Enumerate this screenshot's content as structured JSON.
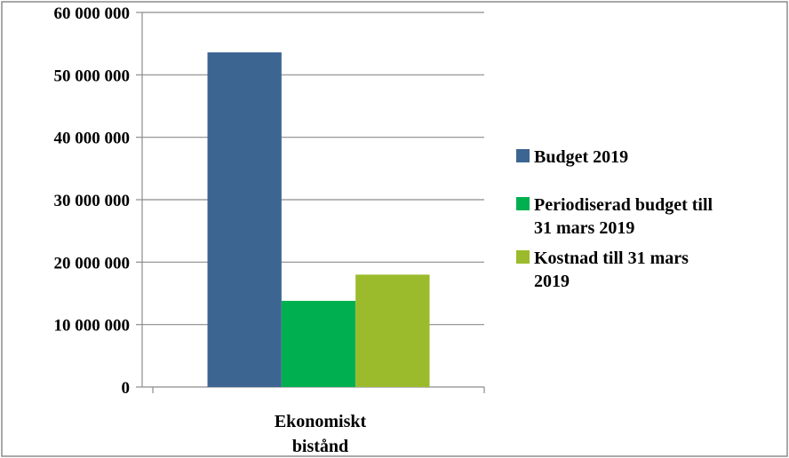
{
  "chart_data": {
    "type": "bar",
    "categories": [
      "Ekonomiskt bistånd"
    ],
    "category_label_lines": [
      [
        "Ekonomiskt",
        "bistånd"
      ]
    ],
    "series": [
      {
        "name": "Budget 2019",
        "name_lines": [
          "Budget 2019"
        ],
        "color": "#3C6591",
        "values": [
          53600000
        ]
      },
      {
        "name": "Periodiserad budget till 31 mars 2019",
        "name_lines": [
          "Periodiserad budget till",
          "31 mars 2019"
        ],
        "color": "#00B050",
        "values": [
          13800000
        ]
      },
      {
        "name": "Kostnad till 31 mars 2019",
        "name_lines": [
          "Kostnad till 31 mars",
          "2019"
        ],
        "color": "#9BBB2C",
        "values": [
          18000000
        ]
      }
    ],
    "yticks": [
      0,
      10000000,
      20000000,
      30000000,
      40000000,
      50000000,
      60000000
    ],
    "ytick_labels": [
      "0",
      "10 000 000",
      "20 000 000",
      "30 000 000",
      "40 000 000",
      "50 000 000",
      "60 000 000"
    ],
    "ylim": [
      0,
      60000000
    ],
    "grid": true,
    "legend": "right",
    "title": "",
    "xlabel": "",
    "ylabel": ""
  }
}
